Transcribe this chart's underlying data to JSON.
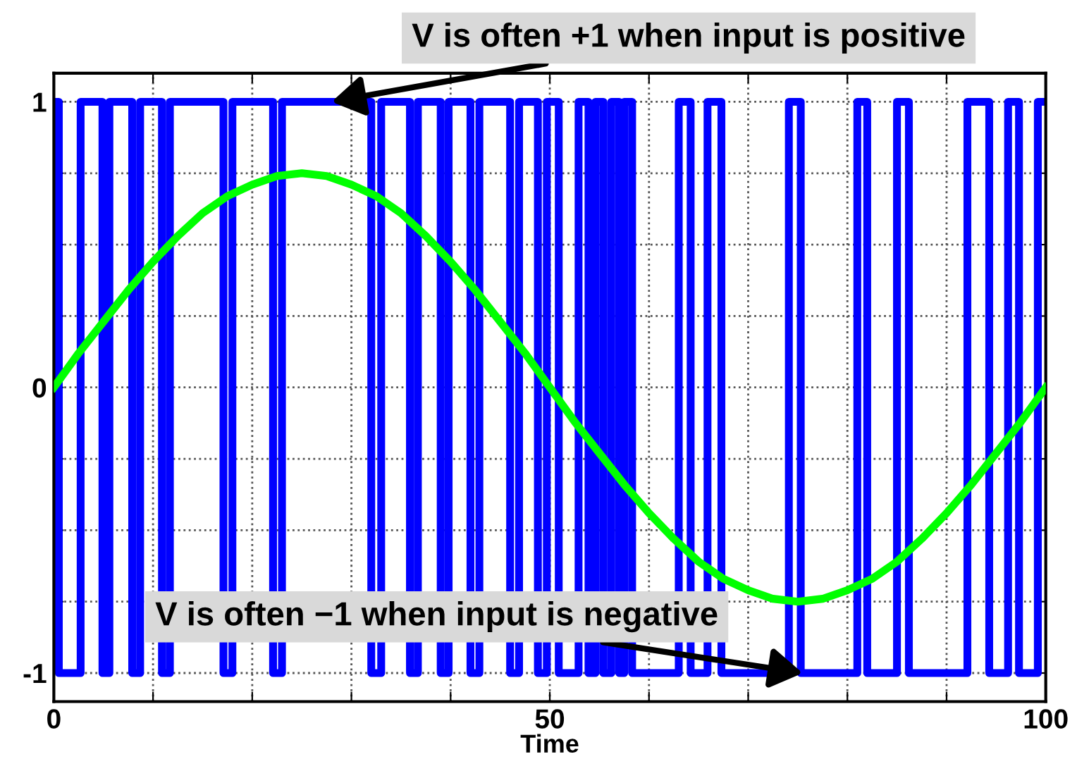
{
  "chart_data": {
    "type": "step",
    "xlabel": "Time",
    "xlim": [
      0,
      100
    ],
    "xticks": [
      0,
      {
        "value": 10,
        "label": null
      },
      {
        "value": 20,
        "label": null
      },
      {
        "value": 30,
        "label": null
      },
      {
        "value": 40,
        "label": null
      },
      50,
      {
        "value": 60,
        "label": null
      },
      {
        "value": 70,
        "label": null
      },
      {
        "value": 80,
        "label": null
      },
      {
        "value": 90,
        "label": null
      },
      100
    ],
    "ylim": [
      -1.1,
      1.1
    ],
    "yticks": [
      -1,
      {
        "value": -0.75,
        "label": null
      },
      {
        "value": -0.5,
        "label": null
      },
      {
        "value": -0.25,
        "label": null
      },
      0,
      {
        "value": 0.25,
        "label": null
      },
      {
        "value": 0.5,
        "label": null
      },
      {
        "value": 0.75,
        "label": null
      },
      1
    ],
    "grid": true,
    "line_style": "solid",
    "marker": "none",
    "series": [
      {
        "color": "#0000ff",
        "x": [
          0,
          0.5,
          2.7,
          4.9,
          5.6,
          7.9,
          8.7,
          10.9,
          11.7,
          17.1,
          18.0,
          22.1,
          23.0,
          32.0,
          33.0,
          35.9,
          36.7,
          39.0,
          39.8,
          42.0,
          42.9,
          46.0,
          46.9,
          48.8,
          49.7,
          50.9,
          52.9,
          53.9,
          54.6,
          55.4,
          56.2,
          57.0,
          57.5,
          58.3,
          63.0,
          64.2,
          65.9,
          67.3,
          74.1,
          75.3,
          81.0,
          82.0,
          85.0,
          86.2,
          92.1,
          94.3,
          96.2,
          97.3,
          99.2,
          100
        ],
        "values": [
          1,
          -1,
          1,
          -1,
          1,
          -1,
          1,
          -1,
          1,
          -1,
          1,
          -1,
          1,
          -1,
          1,
          -1,
          1,
          -1,
          1,
          -1,
          1,
          -1,
          1,
          -1,
          1,
          -1,
          1,
          -1,
          1,
          -1,
          1,
          -1,
          1,
          -1,
          1,
          -1,
          1,
          -1,
          1,
          -1,
          1,
          -1,
          1,
          -1,
          1,
          -1,
          1,
          -1,
          1,
          1
        ]
      },
      {
        "type": "line",
        "color": "#00ff00",
        "x": [
          0,
          2.5,
          5,
          7.5,
          10,
          12.5,
          15,
          17.5,
          20,
          22.5,
          25,
          27.5,
          30,
          32.5,
          35,
          37.5,
          40,
          42.5,
          45,
          47.5,
          50,
          52.5,
          55,
          57.5,
          60,
          62.5,
          65,
          67.5,
          70,
          72.5,
          75,
          77.5,
          80,
          82.5,
          85,
          87.5,
          90,
          92.5,
          95,
          97.5,
          100
        ],
        "values": [
          0,
          0.12,
          0.23,
          0.34,
          0.44,
          0.53,
          0.61,
          0.67,
          0.71,
          0.74,
          0.75,
          0.74,
          0.71,
          0.67,
          0.61,
          0.53,
          0.44,
          0.34,
          0.23,
          0.12,
          0,
          -0.12,
          -0.23,
          -0.34,
          -0.44,
          -0.53,
          -0.61,
          -0.67,
          -0.71,
          -0.74,
          -0.75,
          -0.74,
          -0.71,
          -0.67,
          -0.61,
          -0.53,
          -0.44,
          -0.34,
          -0.23,
          -0.12,
          0
        ]
      }
    ],
    "annotations": [
      {
        "text": "V is often +1 when input is positive",
        "x": 28,
        "y": 1
      },
      {
        "text": "V is often −1 when input is negative",
        "x": 75.5,
        "y": -1
      }
    ]
  }
}
